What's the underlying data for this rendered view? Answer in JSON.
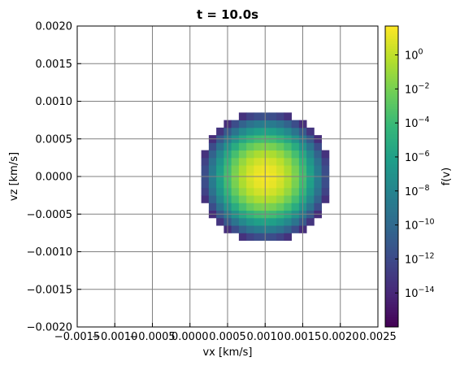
{
  "chart_data": {
    "type": "heatmap",
    "title": "t = 10.0s",
    "xlabel": "vx [km/s]",
    "ylabel": "vz [km/s]",
    "xlim": [
      -0.0015,
      0.0025
    ],
    "ylim": [
      -0.002,
      0.002
    ],
    "x_ticks": [
      "−0.0015",
      "−0.0010",
      "−0.0005",
      "0.0000",
      "0.0005",
      "0.0010",
      "0.0015",
      "0.0020",
      "0.0025"
    ],
    "x_tick_values": [
      -0.0015,
      -0.001,
      -0.0005,
      0.0,
      0.0005,
      0.001,
      0.0015,
      0.002,
      0.0025
    ],
    "y_ticks": [
      "−0.0020",
      "−0.0015",
      "−0.0010",
      "−0.0005",
      "0.0000",
      "0.0005",
      "0.0010",
      "0.0015",
      "0.0020"
    ],
    "y_tick_values": [
      -0.002,
      -0.0015,
      -0.001,
      -0.0005,
      0.0,
      0.0005,
      0.001,
      0.0015,
      0.002
    ],
    "grid": true,
    "colormap": "viridis",
    "colorbar": {
      "label": "f(v)",
      "scale": "log",
      "range": [
        1e-16,
        50
      ],
      "ticks": [
        {
          "exp": 0,
          "label": "10",
          "sup": "0"
        },
        {
          "exp": -2,
          "label": "10",
          "sup": "−2"
        },
        {
          "exp": -4,
          "label": "10",
          "sup": "−4"
        },
        {
          "exp": -6,
          "label": "10",
          "sup": "−6"
        },
        {
          "exp": -8,
          "label": "10",
          "sup": "−8"
        },
        {
          "exp": -10,
          "label": "10",
          "sup": "−10"
        },
        {
          "exp": -12,
          "label": "10",
          "sup": "−12"
        },
        {
          "exp": -14,
          "label": "10",
          "sup": "−14"
        }
      ]
    },
    "distribution": {
      "kind": "gaussian_truncated",
      "center": [
        0.001,
        0.0
      ],
      "grid_step": 0.0001,
      "peak_log10": 1.5,
      "log10_drop_per_step": 0.205,
      "cutoff_radius": 0.00088
    }
  },
  "colors": {
    "grid": "#808080",
    "viridis": [
      "#440154",
      "#482878",
      "#3e4989",
      "#31688e",
      "#26828e",
      "#1f9e89",
      "#35b779",
      "#6ece58",
      "#b5de2b",
      "#fde725"
    ]
  }
}
